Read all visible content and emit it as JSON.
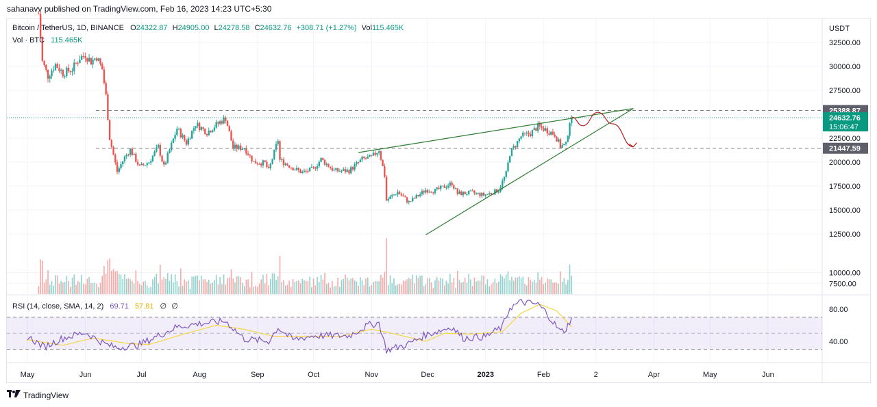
{
  "header": {
    "published": "sahanavv published on TradingView.com, Feb 16, 2023 14:23 UTC+5:30"
  },
  "legend": {
    "symbol": "Bitcoin / TetherUS, 1D, BINANCE",
    "o_label": "O",
    "o_value": "24322.87",
    "h_label": "H",
    "h_value": "24905.00",
    "l_label": "L",
    "l_value": "24278.58",
    "c_label": "C",
    "c_value": "24632.76",
    "change": "+308.71 (+1.27%)",
    "vol_label": "Vol",
    "vol_value": "115.465K",
    "vol_row_label": "Vol · BTC",
    "vol_row_value": "115.465K"
  },
  "rsi_legend": {
    "label": "RSI (14, close, SMA, 14, 2)",
    "rsi_value": "69.71",
    "sma_value": "57.81",
    "extra1": "∅",
    "extra2": "∅"
  },
  "footer": {
    "brand": "TradingView"
  },
  "colors": {
    "up": "#26a69a",
    "down": "#ef5350",
    "rsi_line": "#7e57c2",
    "rsi_sma": "#f5d742",
    "trendline": "#2e7d32",
    "projection": "#b71c1c",
    "price_label": "#089981"
  },
  "chart_data": [
    {
      "type": "candlestick",
      "title": "Bitcoin / TetherUS, 1D, BINANCE",
      "currency": "USDT",
      "y_ticks": [
        7500,
        10000,
        12500,
        15000,
        17500,
        20000,
        22500,
        25000,
        27500,
        30000,
        32500
      ],
      "y_tick_labels": [
        "7500.00",
        "10000.00",
        "12500.00",
        "15000.00",
        "17500.00",
        "20000.00",
        "22500.00",
        "25000.00",
        "27500.00",
        "30000.00",
        "32500.00"
      ],
      "x_labels": [
        "May",
        "Jun",
        "Jul",
        "Aug",
        "Sep",
        "Oct",
        "Nov",
        "Dec",
        "2023",
        "Feb",
        "2",
        "Apr",
        "May",
        "Jun"
      ],
      "x_label_dates": [
        "2022-05-01",
        "2022-06-01",
        "2022-07-01",
        "2022-08-01",
        "2022-09-01",
        "2022-10-01",
        "2022-11-01",
        "2022-12-01",
        "2023-01-01",
        "2023-02-01",
        "2023-03-01",
        "2023-04-01",
        "2023-05-01",
        "2023-06-01"
      ],
      "last_date": "2023-02-16",
      "close_path": [
        [
          "2022-05-07",
          35500
        ],
        [
          "2022-05-09",
          30500
        ],
        [
          "2022-05-12",
          29000
        ],
        [
          "2022-05-16",
          30200
        ],
        [
          "2022-05-20",
          29300
        ],
        [
          "2022-05-25",
          29700
        ],
        [
          "2022-05-29",
          30900
        ],
        [
          "2022-06-01",
          31200
        ],
        [
          "2022-06-04",
          30500
        ],
        [
          "2022-06-07",
          31000
        ],
        [
          "2022-06-10",
          29700
        ],
        [
          "2022-06-12",
          26900
        ],
        [
          "2022-06-14",
          22500
        ],
        [
          "2022-06-18",
          19000
        ],
        [
          "2022-06-22",
          20500
        ],
        [
          "2022-06-25",
          21300
        ],
        [
          "2022-06-30",
          19500
        ],
        [
          "2022-07-05",
          20000
        ],
        [
          "2022-07-10",
          21600
        ],
        [
          "2022-07-13",
          19500
        ],
        [
          "2022-07-20",
          23500
        ],
        [
          "2022-07-25",
          22000
        ],
        [
          "2022-07-30",
          24000
        ],
        [
          "2022-08-05",
          23100
        ],
        [
          "2022-08-10",
          23900
        ],
        [
          "2022-08-15",
          24600
        ],
        [
          "2022-08-19",
          21500
        ],
        [
          "2022-08-25",
          21500
        ],
        [
          "2022-08-30",
          20000
        ],
        [
          "2022-09-05",
          19900
        ],
        [
          "2022-09-07",
          19100
        ],
        [
          "2022-09-12",
          22300
        ],
        [
          "2022-09-13",
          20200
        ],
        [
          "2022-09-20",
          19400
        ],
        [
          "2022-09-25",
          18900
        ],
        [
          "2022-10-01",
          19300
        ],
        [
          "2022-10-05",
          20300
        ],
        [
          "2022-10-12",
          19100
        ],
        [
          "2022-10-20",
          19100
        ],
        [
          "2022-10-27",
          20300
        ],
        [
          "2022-11-01",
          20500
        ],
        [
          "2022-11-05",
          21300
        ],
        [
          "2022-11-08",
          18600
        ],
        [
          "2022-11-09",
          16000
        ],
        [
          "2022-11-15",
          16900
        ],
        [
          "2022-11-21",
          15800
        ],
        [
          "2022-11-30",
          17100
        ],
        [
          "2022-12-05",
          17000
        ],
        [
          "2022-12-14",
          17800
        ],
        [
          "2022-12-17",
          16700
        ],
        [
          "2022-12-25",
          16800
        ],
        [
          "2022-12-31",
          16550
        ],
        [
          "2023-01-05",
          16850
        ],
        [
          "2023-01-08",
          17100
        ],
        [
          "2023-01-12",
          18800
        ],
        [
          "2023-01-14",
          20900
        ],
        [
          "2023-01-20",
          22700
        ],
        [
          "2023-01-25",
          23000
        ],
        [
          "2023-01-29",
          23700
        ],
        [
          "2023-02-02",
          23400
        ],
        [
          "2023-02-07",
          22900
        ],
        [
          "2023-02-10",
          21650
        ],
        [
          "2023-02-13",
          21800
        ],
        [
          "2023-02-15",
          24300
        ],
        [
          "2023-02-16",
          24633
        ]
      ],
      "volume_ticks": [
        7500,
        10000
      ],
      "volume_tick_labels": [
        "7500.00",
        "10000.00"
      ],
      "horizontal_levels": [
        {
          "price": 25388.87,
          "label": "25388.87",
          "style": "dashed"
        },
        {
          "price": 21447.59,
          "label": "21447.59",
          "style": "dashed"
        },
        {
          "price": 24632.76,
          "label": "24632.76",
          "sublabel": "15:06:47",
          "style": "dotted"
        }
      ],
      "trendlines": [
        {
          "from": [
            "2022-10-25",
            21000
          ],
          "to": [
            "2023-03-21",
            25600
          ]
        },
        {
          "from": [
            "2022-11-30",
            12400
          ],
          "to": [
            "2023-03-21",
            25600
          ]
        }
      ],
      "projection": [
        [
          "2023-02-16",
          24700
        ],
        [
          "2023-02-22",
          23800
        ],
        [
          "2023-03-02",
          25200
        ],
        [
          "2023-03-10",
          24000
        ],
        [
          "2023-03-21",
          21600
        ]
      ]
    },
    {
      "type": "line",
      "title": "RSI (14, close, SMA, 14, 2)",
      "y_ticks": [
        40,
        80
      ],
      "y_tick_labels": [
        "40.00",
        "80.00"
      ],
      "bands": [
        70,
        50,
        30
      ],
      "rsi_path": [
        [
          "2022-05-01",
          46
        ],
        [
          "2022-05-10",
          33
        ],
        [
          "2022-05-20",
          44
        ],
        [
          "2022-06-01",
          51
        ],
        [
          "2022-06-12",
          36
        ],
        [
          "2022-06-18",
          32
        ],
        [
          "2022-06-30",
          36
        ],
        [
          "2022-07-20",
          58
        ],
        [
          "2022-08-01",
          62
        ],
        [
          "2022-08-15",
          65
        ],
        [
          "2022-08-25",
          43
        ],
        [
          "2022-09-07",
          40
        ],
        [
          "2022-09-12",
          57
        ],
        [
          "2022-09-20",
          42
        ],
        [
          "2022-10-01",
          47
        ],
        [
          "2022-10-20",
          47
        ],
        [
          "2022-10-30",
          60
        ],
        [
          "2022-11-05",
          63
        ],
        [
          "2022-11-09",
          29
        ],
        [
          "2022-11-20",
          36
        ],
        [
          "2022-11-30",
          48
        ],
        [
          "2022-12-14",
          58
        ],
        [
          "2022-12-20",
          44
        ],
        [
          "2023-01-01",
          46
        ],
        [
          "2023-01-10",
          58
        ],
        [
          "2023-01-14",
          82
        ],
        [
          "2023-01-20",
          89
        ],
        [
          "2023-01-29",
          86
        ],
        [
          "2023-02-02",
          77
        ],
        [
          "2023-02-10",
          52
        ],
        [
          "2023-02-13",
          55
        ],
        [
          "2023-02-16",
          69.71
        ]
      ],
      "sma_path": [
        [
          "2022-05-01",
          42
        ],
        [
          "2022-05-20",
          35
        ],
        [
          "2022-06-05",
          44
        ],
        [
          "2022-06-25",
          37
        ],
        [
          "2022-07-05",
          36
        ],
        [
          "2022-07-25",
          50
        ],
        [
          "2022-08-10",
          60
        ],
        [
          "2022-08-25",
          55
        ],
        [
          "2022-09-10",
          46
        ],
        [
          "2022-09-25",
          46
        ],
        [
          "2022-10-15",
          46
        ],
        [
          "2022-11-01",
          55
        ],
        [
          "2022-11-12",
          50
        ],
        [
          "2022-11-30",
          40
        ],
        [
          "2022-12-10",
          50
        ],
        [
          "2022-12-25",
          49
        ],
        [
          "2023-01-10",
          52
        ],
        [
          "2023-01-20",
          75
        ],
        [
          "2023-01-30",
          86
        ],
        [
          "2023-02-08",
          78
        ],
        [
          "2023-02-16",
          57.81
        ]
      ]
    }
  ]
}
